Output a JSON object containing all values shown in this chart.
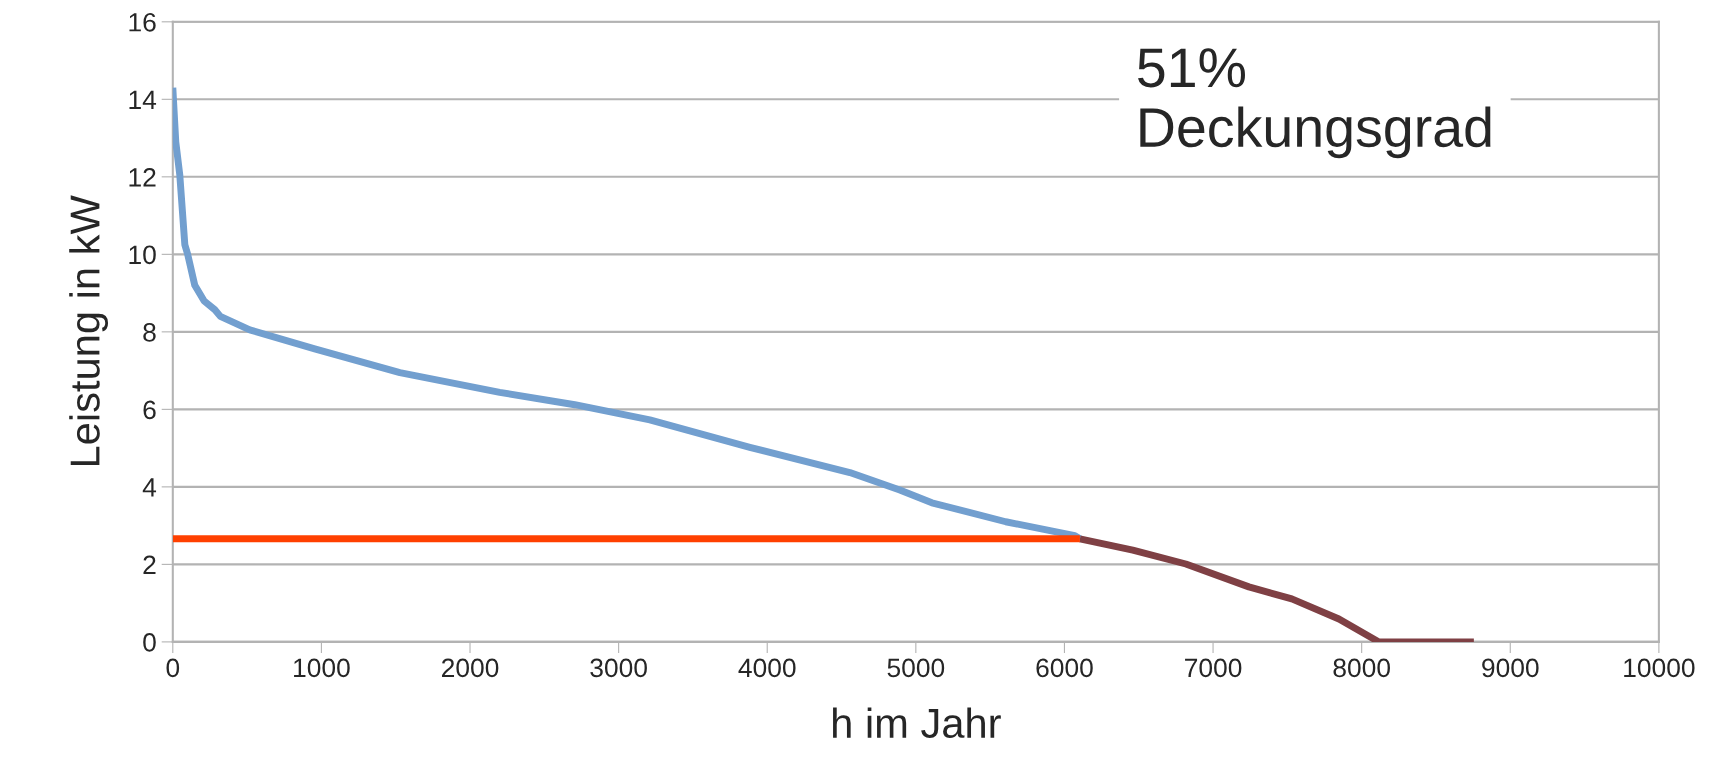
{
  "chart_data": {
    "type": "line",
    "xlabel": "h im Jahr",
    "ylabel": "Leistung in kW",
    "series": [
      {
        "color": "#729fcf",
        "x": [
          0,
          20,
          47,
          81,
          100,
          148,
          210,
          283,
          320,
          518,
          955,
          1528,
          2200,
          2705,
          3210,
          3883,
          4556,
          4892,
          5108,
          5605,
          6070,
          6104
        ],
        "values": [
          14.3,
          12.9,
          12.05,
          10.25,
          10.0,
          9.2,
          8.8,
          8.57,
          8.4,
          8.05,
          7.56,
          6.95,
          6.44,
          6.12,
          5.73,
          5.02,
          4.37,
          3.92,
          3.59,
          3.1,
          2.74,
          2.66
        ]
      },
      {
        "color": "#7f4044",
        "x": [
          6104,
          6460,
          6817,
          7241,
          7530,
          7847,
          8116,
          8755
        ],
        "values": [
          2.66,
          2.37,
          2.01,
          1.42,
          1.11,
          0.59,
          0,
          0
        ]
      },
      {
        "color": "#ff4000",
        "x": [
          0,
          6104
        ],
        "values": [
          2.66,
          2.66
        ]
      }
    ],
    "annotations": [
      "51%\nDeckungsgrad"
    ],
    "xlim": [
      0,
      10000
    ],
    "xticks": [
      0,
      1000,
      2000,
      3000,
      4000,
      5000,
      6000,
      7000,
      8000,
      9000,
      10000
    ],
    "ylim": [
      0,
      16
    ],
    "yticks": [
      0,
      2,
      4,
      6,
      8,
      10,
      12,
      14,
      16
    ],
    "grid": "y",
    "legend": false
  }
}
